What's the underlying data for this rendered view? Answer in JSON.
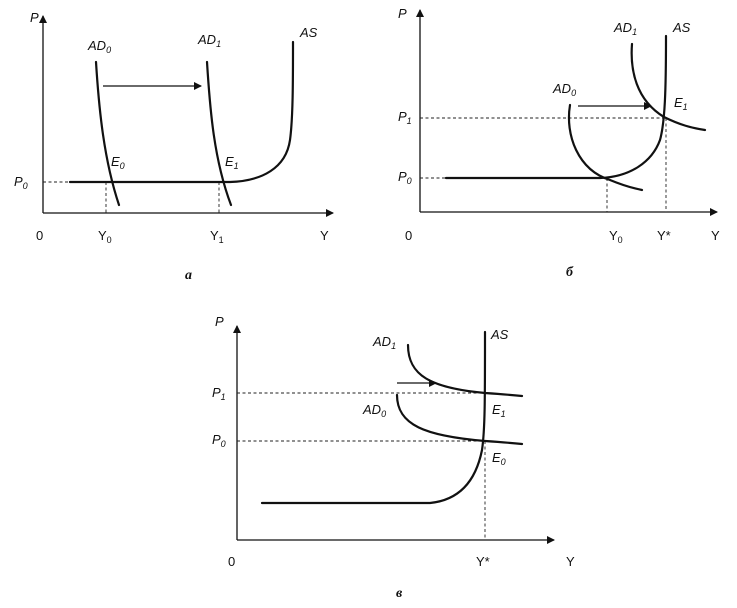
{
  "panel_a": {
    "caption": "а",
    "axis_y": "P",
    "axis_x": "Y",
    "origin": "0",
    "ad0": {
      "base": "AD",
      "sub": "0"
    },
    "ad1": {
      "base": "AD",
      "sub": "1"
    },
    "as": "AS",
    "e0": {
      "base": "E",
      "sub": "0"
    },
    "e1": {
      "base": "E",
      "sub": "1"
    },
    "p0": {
      "base": "P",
      "sub": "0"
    },
    "y0": {
      "base": "Y",
      "sub": "0"
    },
    "y1": {
      "base": "Y",
      "sub": "1"
    }
  },
  "panel_b": {
    "caption": "б",
    "axis_y": "P",
    "axis_x": "Y",
    "origin": "0",
    "ad0": {
      "base": "AD",
      "sub": "0"
    },
    "ad1": {
      "base": "AD",
      "sub": "1"
    },
    "as": "AS",
    "e1": {
      "base": "E",
      "sub": "1"
    },
    "p0": {
      "base": "P",
      "sub": "0"
    },
    "p1": {
      "base": "P",
      "sub": "1"
    },
    "y0": {
      "base": "Y",
      "sub": "0"
    },
    "ystar": "Y*"
  },
  "panel_c": {
    "caption": "в",
    "axis_y": "P",
    "axis_x": "Y",
    "origin": "0",
    "ad0": {
      "base": "AD",
      "sub": "0"
    },
    "ad1": {
      "base": "AD",
      "sub": "1"
    },
    "as": "AS",
    "e0": {
      "base": "E",
      "sub": "0"
    },
    "e1": {
      "base": "E",
      "sub": "1"
    },
    "p0": {
      "base": "P",
      "sub": "0"
    },
    "p1": {
      "base": "P",
      "sub": "1"
    },
    "ystar": "Y*"
  }
}
